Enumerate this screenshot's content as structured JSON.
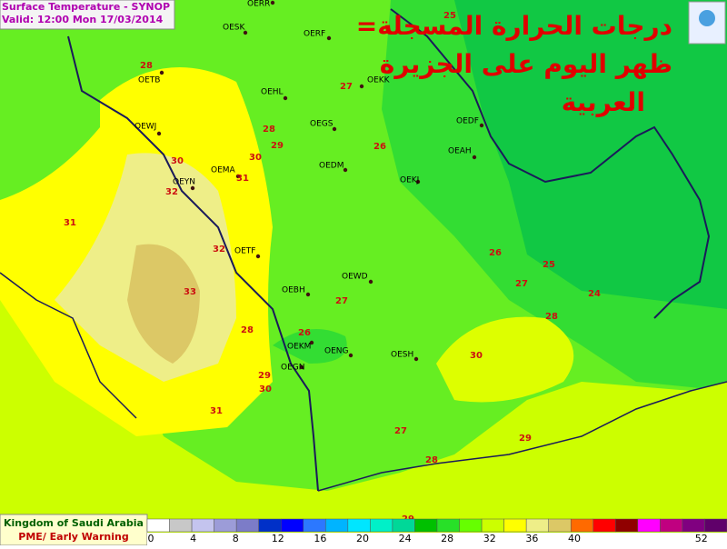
{
  "header": {
    "title": "Surface Temperature  - SYNOP",
    "valid": "Valid: 12:00 Mon 17/03/2014"
  },
  "arabic_title": [
    "=درجات الحرارة المسجلة",
    "ظهر اليوم على الجزيرة",
    "العربية"
  ],
  "stations": [
    "OERR",
    "OESK",
    "OERF",
    "OETB",
    "OEHL",
    "OEKK",
    "OEGS",
    "OEWJ",
    "OEDF",
    "OEAH",
    "OEDM",
    "OEMA",
    "OEYN",
    "OEKJ",
    "OETF",
    "OEWD",
    "OEBH",
    "OEKM",
    "OENG",
    "OESH",
    "OEGN"
  ],
  "temperatures": [
    25,
    28,
    27,
    28,
    29,
    26,
    30,
    30,
    31,
    32,
    31,
    32,
    33,
    26,
    25,
    27,
    24,
    27,
    28,
    26,
    28,
    30,
    29,
    30,
    31,
    27,
    29,
    28,
    29
  ],
  "legend": {
    "colors": [
      "#ffffff",
      "#c8c8c8",
      "#c4c4ee",
      "#9c9cd8",
      "#7c7cc8",
      "#0030c8",
      "#0000ff",
      "#2c78ff",
      "#00b4ff",
      "#00e6ff",
      "#00f0c8",
      "#00d898",
      "#00c000",
      "#28e028",
      "#66ff00",
      "#ccff00",
      "#ffff00",
      "#eeee88",
      "#dcc866",
      "#ff6a00",
      "#ff0000",
      "#900000",
      "#ff00ff",
      "#c00080",
      "#800080",
      "#60006a"
    ],
    "ticks": [
      0,
      4,
      8,
      12,
      16,
      20,
      24,
      28,
      32,
      36,
      40,
      52
    ]
  },
  "footer": {
    "country": "Kingdom of Saudi Arabia",
    "agency": "PME/ Early Warning"
  }
}
